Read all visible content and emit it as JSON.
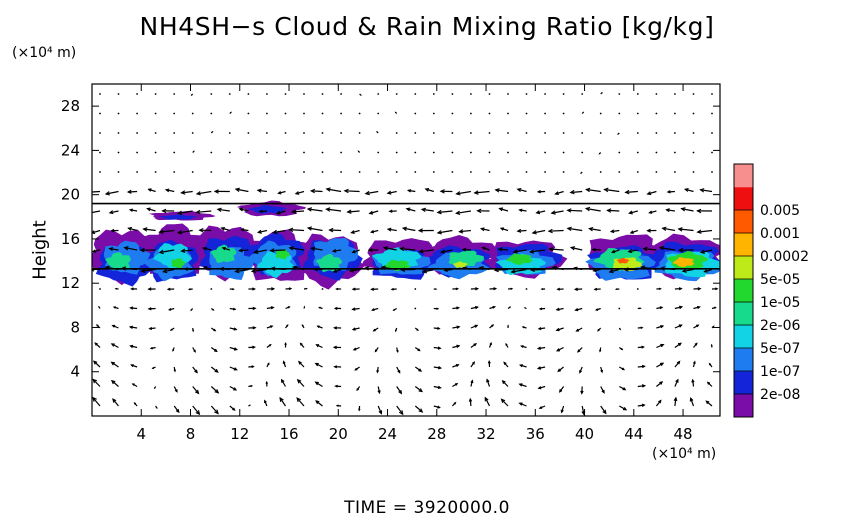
{
  "chart_data": {
    "type": "heatmap",
    "title": "NH4SH−s Cloud & Rain Mixing Ratio [kg/kg]",
    "ylabel": "Height",
    "x_unit": "(×10⁴ m)",
    "y_unit": "(×10⁴ m)",
    "xlim": [
      0,
      51
    ],
    "ylim": [
      0,
      30
    ],
    "x_ticks": [
      4,
      8,
      12,
      16,
      20,
      24,
      28,
      32,
      36,
      40,
      44,
      48
    ],
    "y_ticks": [
      4,
      8,
      12,
      16,
      20,
      24,
      28
    ],
    "colorbar": {
      "levels": [
        "2e-08",
        "1e-07",
        "5e-07",
        "2e-06",
        "1e-05",
        "5e-05",
        "0.0002",
        "0.001",
        "0.005"
      ],
      "colors": [
        "#7a0ca8",
        "#1424d8",
        "#1e7cf0",
        "#12d2e6",
        "#17da8c",
        "#22d82e",
        "#bdea18",
        "#ffb400",
        "#ff5a00",
        "#ee1010",
        "#f78f8f"
      ]
    },
    "overlay": "wind vectors",
    "regions": [
      {
        "x": [
          0.3,
          21.5
        ],
        "y": [
          12.3,
          16.8
        ],
        "peak": "1e-05"
      },
      {
        "x": [
          22.5,
          37.5
        ],
        "y": [
          12.6,
          15.8
        ],
        "peak": "5e-05"
      },
      {
        "x": [
          40.5,
          51
        ],
        "y": [
          12.4,
          16.0
        ],
        "peak": "0.001"
      },
      {
        "x": [
          5.0,
          9.0
        ],
        "y": [
          17.6,
          18.4
        ],
        "peak": "2e-08"
      },
      {
        "x": [
          12.5,
          16.5
        ],
        "y": [
          18.0,
          19.3
        ],
        "peak": "2e-08"
      }
    ],
    "reference_lines": [
      19.2,
      13.3
    ]
  },
  "footer": {
    "time_label": "TIME  =  3920000.0"
  }
}
